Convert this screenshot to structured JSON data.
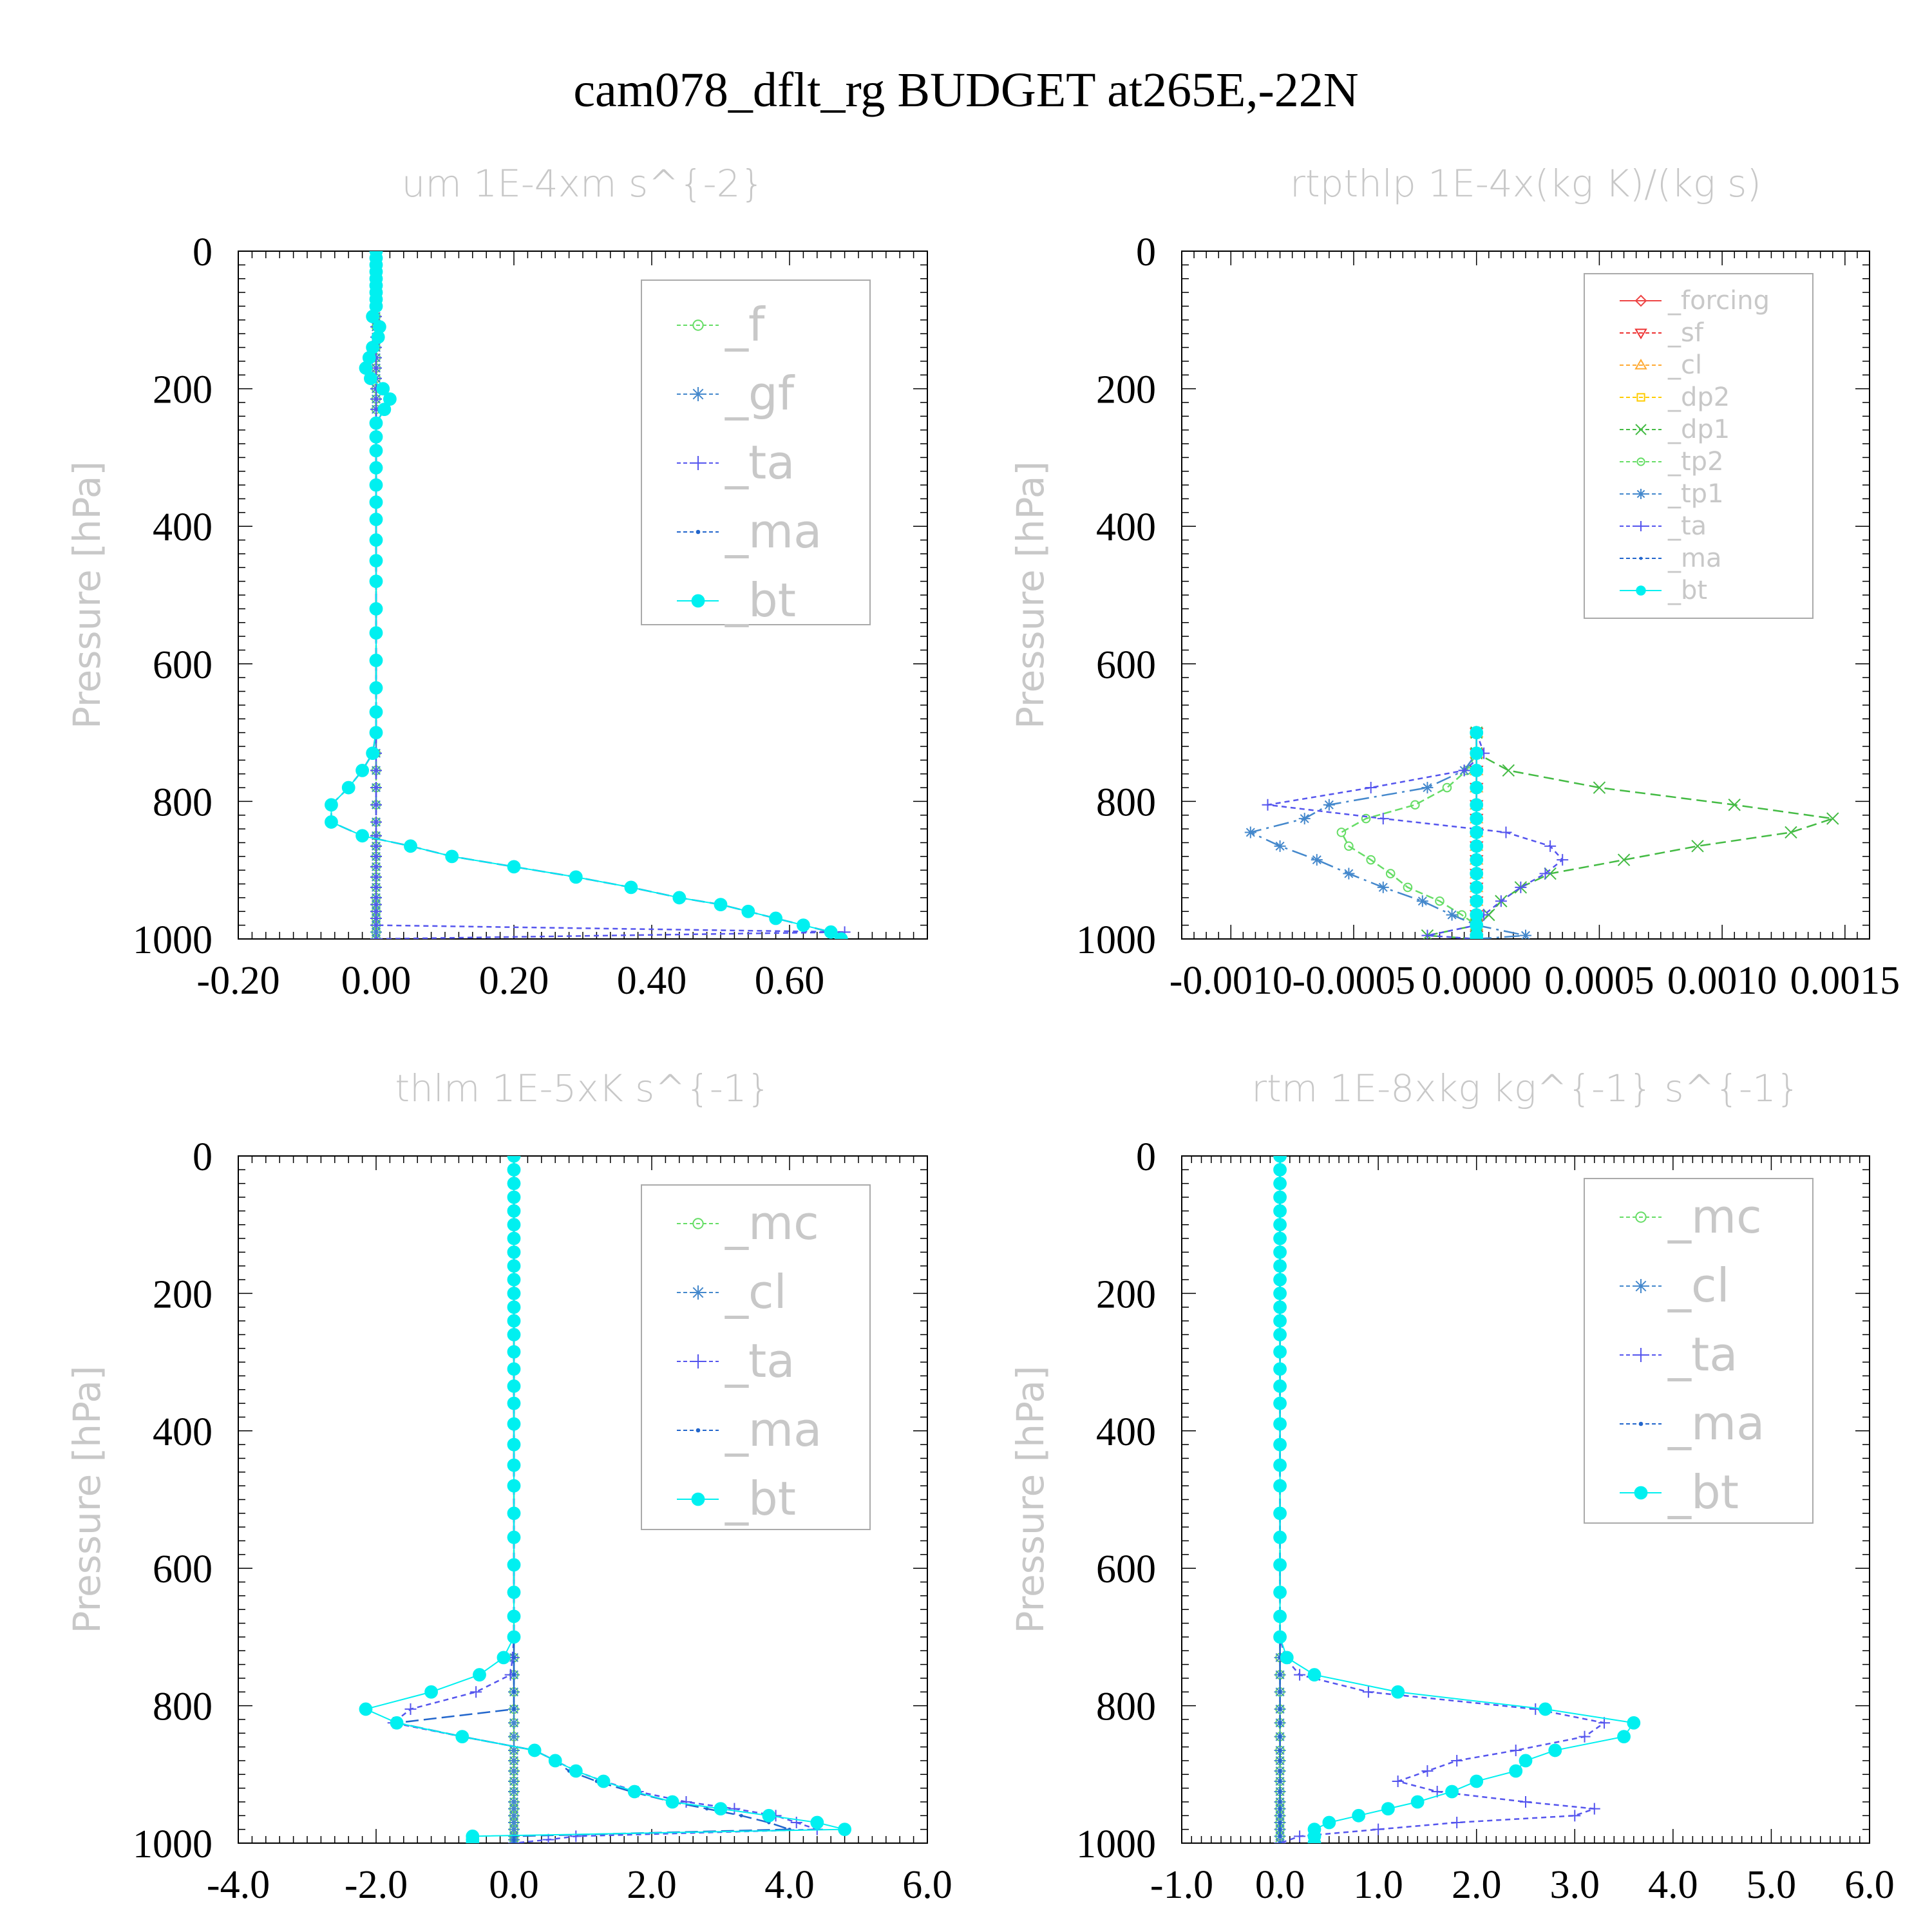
{
  "title": "cam078_dflt_rg  BUDGET at265E,-22N",
  "ylabel": "Pressure [hPa]",
  "colors": {
    "_f": "#66dd66",
    "_gf": "#4488cc",
    "_ta": "#5555ee",
    "_ma": "#2266cc",
    "_bt": "#00f0f0",
    "_forcing": "#ee4444",
    "_sf": "#ee3333",
    "_cl": "#ffaa33",
    "_dp2": "#ffcc00",
    "_dp1": "#44bb44",
    "_tp2": "#66dd66",
    "_tp1": "#4488cc",
    "_mc": "#66dd66",
    "_cl_b": "#4488cc"
  },
  "chart_data": [
    {
      "type": "line",
      "title": "um  1E-4xm s^{-2}",
      "ylabel": "Pressure [hPa]",
      "xlim": [
        -0.2,
        0.8
      ],
      "ylim": [
        1000,
        0
      ],
      "xticks": [
        -0.2,
        0.0,
        0.2,
        0.4,
        0.6
      ],
      "xtick_labels": [
        "-0.20",
        "0.00",
        "0.20",
        "0.40",
        "0.60"
      ],
      "yticks": [
        0,
        200,
        400,
        600,
        800,
        1000
      ],
      "legend": "top-right",
      "legend_entries": [
        "_f",
        "_gf",
        "_ta",
        "_ma",
        "_bt"
      ],
      "p": [
        0,
        10,
        20,
        30,
        40,
        50,
        60,
        70,
        80,
        95,
        110,
        125,
        140,
        155,
        170,
        185,
        200,
        215,
        230,
        250,
        270,
        290,
        315,
        340,
        365,
        390,
        420,
        450,
        480,
        520,
        555,
        595,
        635,
        670,
        700,
        730,
        755,
        780,
        805,
        830,
        850,
        865,
        880,
        895,
        910,
        925,
        940,
        950,
        960,
        970,
        980,
        990,
        1000
      ],
      "series": [
        {
          "name": "_f",
          "marker": "circle-open",
          "values": "zero"
        },
        {
          "name": "_gf",
          "marker": "asterisk",
          "values": "zero"
        },
        {
          "name": "_ta",
          "marker": "plus",
          "values": [
            0,
            0,
            0,
            0,
            0,
            0,
            0,
            0,
            0,
            0,
            0,
            0,
            0,
            0,
            0,
            0,
            0,
            0,
            0,
            0,
            0,
            0,
            0,
            0,
            0,
            0,
            0,
            0,
            0,
            0,
            0,
            0,
            0,
            0,
            0,
            0,
            0,
            0,
            0,
            0,
            0,
            0,
            0,
            0,
            0,
            0,
            0,
            0,
            0,
            0,
            0,
            0.68,
            0
          ]
        },
        {
          "name": "_ma",
          "marker": "dot",
          "values": [
            0,
            0,
            0,
            0,
            0,
            0,
            0,
            0,
            0,
            -0.005,
            0.005,
            0.003,
            -0.005,
            -0.01,
            -0.015,
            -0.008,
            0.01,
            0.02,
            0.012,
            0,
            0,
            0,
            0,
            0,
            0,
            0,
            0,
            0,
            0,
            0,
            0,
            0,
            0,
            0,
            0,
            -0.005,
            -0.02,
            -0.04,
            -0.065,
            -0.065,
            -0.02,
            0.05,
            0.11,
            0.2,
            0.29,
            0.37,
            0.44,
            0.5,
            0.54,
            0.58,
            0.62,
            0.66,
            0.675
          ]
        },
        {
          "name": "_bt",
          "marker": "circle-filled",
          "values": [
            0,
            0,
            0,
            0,
            0,
            0,
            0,
            0,
            0,
            -0.005,
            0.005,
            0.003,
            -0.005,
            -0.01,
            -0.015,
            -0.008,
            0.01,
            0.02,
            0.012,
            0,
            0,
            0,
            0,
            0,
            0,
            0,
            0,
            0,
            0,
            0,
            0,
            0,
            0,
            0,
            0,
            -0.005,
            -0.02,
            -0.04,
            -0.065,
            -0.065,
            -0.02,
            0.05,
            0.11,
            0.2,
            0.29,
            0.37,
            0.44,
            0.5,
            0.54,
            0.58,
            0.62,
            0.66,
            0.675
          ]
        }
      ]
    },
    {
      "type": "line",
      "title": "rtpthlp  1E-4x(kg K)/(kg s)",
      "ylabel": "Pressure [hPa]",
      "xlim": [
        -0.0012,
        0.0016
      ],
      "ylim": [
        1000,
        0
      ],
      "xticks": [
        -0.001,
        -0.0005,
        0.0,
        0.0005,
        0.001,
        0.0015
      ],
      "xtick_labels": [
        "-0.0010",
        "-0.0005",
        "0.0000",
        "0.0005",
        "0.0010",
        "0.0015"
      ],
      "yticks": [
        0,
        200,
        400,
        600,
        800,
        1000
      ],
      "legend": "top-right",
      "legend_entries": [
        "_forcing",
        "_sf",
        "_cl",
        "_dp2",
        "_dp1",
        "_tp2",
        "_tp1",
        "_ta",
        "_ma",
        "_bt"
      ],
      "p": [
        700,
        730,
        755,
        780,
        805,
        825,
        845,
        865,
        885,
        905,
        925,
        945,
        965,
        980,
        995,
        1000
      ],
      "series": [
        {
          "name": "_forcing",
          "marker": "diamond",
          "values": "zero"
        },
        {
          "name": "_sf",
          "marker": "triangle-down",
          "values": "zero"
        },
        {
          "name": "_cl",
          "marker": "triangle-up",
          "values": "zero"
        },
        {
          "name": "_dp2",
          "marker": "square",
          "values": "zero"
        },
        {
          "name": "_dp1",
          "marker": "cross",
          "values": [
            0,
            0,
            0.00013,
            0.0005,
            0.00105,
            0.00145,
            0.00128,
            0.0009,
            0.0006,
            0.0003,
            0.00018,
            0.0001,
            5e-05,
            0,
            -0.0002,
            0
          ]
        },
        {
          "name": "_tp2",
          "marker": "circle-open",
          "values": [
            0,
            0,
            -4e-05,
            -0.00012,
            -0.00025,
            -0.00045,
            -0.00055,
            -0.00052,
            -0.00043,
            -0.00035,
            -0.00028,
            -0.00015,
            -6e-05,
            0,
            0,
            0
          ]
        },
        {
          "name": "_tp1",
          "marker": "asterisk",
          "values": [
            0,
            0,
            -5e-05,
            -0.0002,
            -0.0006,
            -0.0007,
            -0.00092,
            -0.0008,
            -0.00065,
            -0.00052,
            -0.00038,
            -0.00022,
            -0.0001,
            0,
            0.0002,
            0
          ]
        },
        {
          "name": "_ta",
          "marker": "plus",
          "values": [
            0,
            3e-05,
            -5e-05,
            -0.00043,
            -0.00085,
            -0.00038,
            0.00012,
            0.0003,
            0.00035,
            0.00028,
            0.00018,
            0.0001,
            3e-05,
            0,
            -0.0002,
            0
          ]
        },
        {
          "name": "_ma",
          "marker": "dot",
          "values": "zero"
        },
        {
          "name": "_bt",
          "marker": "circle-filled",
          "values": "zero"
        }
      ]
    },
    {
      "type": "line",
      "title": "thlm  1E-5xK s^{-1}",
      "ylabel": "Pressure [hPa]",
      "xlim": [
        -4.0,
        6.0
      ],
      "ylim": [
        1000,
        0
      ],
      "xticks": [
        -4,
        -2,
        0,
        2,
        4,
        6
      ],
      "xtick_labels": [
        "-4.0",
        "-2.0",
        "0.0",
        "2.0",
        "4.0",
        "6.0"
      ],
      "yticks": [
        0,
        200,
        400,
        600,
        800,
        1000
      ],
      "legend": "top-right",
      "legend_entries": [
        "_mc",
        "_cl",
        "_ta",
        "_ma",
        "_bt"
      ],
      "p": [
        0,
        20,
        40,
        60,
        80,
        100,
        120,
        140,
        160,
        180,
        200,
        220,
        240,
        260,
        285,
        310,
        335,
        360,
        390,
        420,
        450,
        480,
        520,
        555,
        595,
        635,
        670,
        700,
        730,
        755,
        780,
        805,
        825,
        845,
        865,
        880,
        895,
        910,
        925,
        940,
        950,
        960,
        970,
        980,
        990,
        995,
        1000
      ],
      "series": [
        {
          "name": "_mc",
          "marker": "circle-open",
          "values": "zero"
        },
        {
          "name": "_cl",
          "marker": "asterisk",
          "values": "zero"
        },
        {
          "name": "_ta",
          "marker": "plus",
          "values": [
            0,
            0,
            0,
            0,
            0,
            0,
            0,
            0,
            0,
            0,
            0,
            0,
            0,
            0,
            0,
            0,
            0,
            0,
            0,
            0,
            0,
            0,
            0,
            0,
            0,
            0,
            0,
            0,
            -0.02,
            -0.05,
            -0.55,
            -1.5,
            -1.75,
            -0.75,
            0.3,
            0.6,
            0.9,
            1.3,
            1.8,
            2.5,
            3.2,
            3.8,
            4.1,
            4.4,
            0.9,
            0.5,
            0
          ]
        },
        {
          "name": "_ma",
          "marker": "dot",
          "values": [
            0,
            0,
            0,
            0,
            0,
            0,
            0,
            0,
            0,
            0,
            0,
            0,
            0,
            0,
            0,
            0,
            0,
            0,
            0,
            0,
            0,
            0,
            0,
            0,
            0,
            0,
            0,
            0,
            0,
            0,
            0,
            0,
            -1.7,
            -0.75,
            0.3,
            0.6,
            0.8,
            1.2,
            1.7,
            2.3,
            2.8,
            3.3,
            3.7,
            4.0,
            0,
            0,
            0
          ]
        },
        {
          "name": "_bt",
          "marker": "circle-filled",
          "values": [
            0,
            0,
            0,
            0,
            0,
            0,
            0,
            0,
            0,
            0,
            0,
            0,
            0,
            0,
            0,
            0,
            0,
            0,
            0,
            0,
            0,
            0,
            0,
            0,
            0,
            0,
            0,
            0,
            -0.15,
            -0.5,
            -1.2,
            -2.15,
            -1.7,
            -0.75,
            0.3,
            0.6,
            0.9,
            1.3,
            1.75,
            2.3,
            3.0,
            3.7,
            4.4,
            4.8,
            -0.6,
            -0.6,
            -0.6
          ]
        }
      ]
    },
    {
      "type": "line",
      "title": "rtm  1E-8xkg kg^{-1} s^{-1}",
      "ylabel": "Pressure [hPa]",
      "xlim": [
        -1.0,
        6.0
      ],
      "ylim": [
        1000,
        0
      ],
      "xticks": [
        -1,
        0,
        1,
        2,
        3,
        4,
        5,
        6
      ],
      "xtick_labels": [
        "-1.0",
        "0.0",
        "1.0",
        "2.0",
        "3.0",
        "4.0",
        "5.0",
        "6.0"
      ],
      "yticks": [
        0,
        200,
        400,
        600,
        800,
        1000
      ],
      "legend": "top-right",
      "legend_entries": [
        "_mc",
        "_cl",
        "_ta",
        "_ma",
        "_bt"
      ],
      "p": [
        0,
        20,
        40,
        60,
        80,
        100,
        120,
        140,
        160,
        180,
        200,
        220,
        240,
        260,
        285,
        310,
        335,
        360,
        390,
        420,
        450,
        480,
        520,
        555,
        595,
        635,
        670,
        700,
        730,
        755,
        780,
        805,
        825,
        845,
        865,
        880,
        895,
        910,
        925,
        940,
        950,
        960,
        970,
        980,
        990,
        1000
      ],
      "series": [
        {
          "name": "_mc",
          "marker": "circle-open",
          "values": "zero"
        },
        {
          "name": "_cl",
          "marker": "asterisk",
          "values": "zero"
        },
        {
          "name": "_ta",
          "marker": "plus",
          "values": [
            0,
            0,
            0,
            0,
            0,
            0,
            0,
            0,
            0,
            0,
            0,
            0,
            0,
            0,
            0,
            0,
            0,
            0,
            0,
            0,
            0,
            0,
            0,
            0,
            0,
            0,
            0,
            0,
            0.05,
            0.2,
            0.9,
            2.6,
            3.3,
            3.1,
            2.4,
            1.8,
            1.5,
            1.2,
            1.6,
            2.5,
            3.2,
            3.0,
            1.8,
            1.0,
            0.2,
            0
          ]
        },
        {
          "name": "_ma",
          "marker": "dot",
          "values": "zero"
        },
        {
          "name": "_bt",
          "marker": "circle-filled",
          "values": [
            0,
            0,
            0,
            0,
            0,
            0,
            0,
            0,
            0,
            0,
            0,
            0,
            0,
            0,
            0,
            0,
            0,
            0,
            0,
            0,
            0,
            0,
            0,
            0,
            0,
            0,
            0,
            0,
            0.07,
            0.35,
            1.2,
            2.7,
            3.6,
            3.5,
            2.8,
            2.5,
            2.4,
            2.0,
            1.75,
            1.4,
            1.1,
            0.8,
            0.5,
            0.35,
            0.35,
            0.35
          ]
        }
      ]
    }
  ]
}
